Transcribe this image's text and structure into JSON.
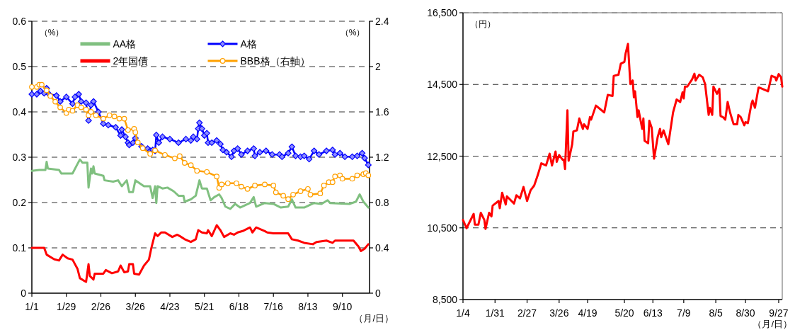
{
  "chart_data": [
    {
      "type": "line",
      "xlabel": "（月/日）",
      "ylabel": "（%）",
      "y2label": "（%）",
      "xlim": [
        "--01-01",
        "--10-02"
      ],
      "xticks": [
        {
          "value": "--01-01",
          "label": "1/1"
        },
        {
          "value": "--01-29",
          "label": "1/29"
        },
        {
          "value": "--02-26",
          "label": "2/26"
        },
        {
          "value": "--03-26",
          "label": "3/26"
        },
        {
          "value": "--04-23",
          "label": "4/23"
        },
        {
          "value": "--05-21",
          "label": "5/21"
        },
        {
          "value": "--06-18",
          "label": "6/18"
        },
        {
          "value": "--07-16",
          "label": "7/16"
        },
        {
          "value": "--08-13",
          "label": "8/13"
        },
        {
          "value": "--09-10",
          "label": "9/10"
        }
      ],
      "ylim": [
        0,
        0.6
      ],
      "yticks": [
        0,
        0.1,
        0.2,
        0.3,
        0.4,
        0.5,
        0.6
      ],
      "y2lim": [
        0,
        2.4
      ],
      "y2ticks": [
        0,
        0.4,
        0.8,
        1.2,
        1.6,
        2,
        2.4
      ],
      "grid": "y",
      "legend": "top",
      "series": [
        {
          "name": "AA格",
          "color": "#80c080",
          "marker": "none",
          "x": [
            "--01-01",
            "--01-07",
            "--01-12",
            "--01-13",
            "--01-14",
            "--01-23",
            "--01-25",
            "--02-03",
            "--02-07",
            "--02-09",
            "--02-11",
            "--02-15",
            "--02-16",
            "--02-18",
            "--02-19",
            "--02-20",
            "--02-21",
            "--02-28",
            "--03-01",
            "--03-08",
            "--03-12",
            "--03-15",
            "--03-19",
            "--03-21",
            "--03-24",
            "--03-26",
            "--04-02",
            "--04-07",
            "--04-09",
            "--04-11",
            "--04-12",
            "--04-13",
            "--04-17",
            "--04-21",
            "--04-26",
            "--04-30",
            "--05-04",
            "--05-05",
            "--05-10",
            "--05-14",
            "--05-17",
            "--05-19",
            "--05-23",
            "--05-26",
            "--05-29",
            "--06-02",
            "--06-04",
            "--06-07",
            "--06-11",
            "--06-15",
            "--06-19",
            "--06-23",
            "--06-27",
            "--06-30",
            "--07-02",
            "--07-09",
            "--07-16",
            "--07-22",
            "--07-28",
            "--07-31",
            "--08-03",
            "--08-10",
            "--08-18",
            "--08-24",
            "--08-29",
            "--08-31",
            "--09-16",
            "--09-21",
            "--09-24",
            "--09-27",
            "--10-01"
          ],
          "values": [
            0.27,
            0.272,
            0.272,
            0.29,
            0.275,
            0.272,
            0.264,
            0.264,
            0.285,
            0.295,
            0.288,
            0.288,
            0.233,
            0.275,
            0.264,
            0.28,
            0.264,
            0.259,
            0.249,
            0.246,
            0.249,
            0.236,
            0.249,
            0.223,
            0.223,
            0.249,
            0.236,
            0.236,
            0.21,
            0.236,
            0.199,
            0.236,
            0.231,
            0.233,
            0.225,
            0.215,
            0.215,
            0.202,
            0.207,
            0.215,
            0.249,
            0.231,
            0.231,
            0.205,
            0.212,
            0.218,
            0.21,
            0.191,
            0.186,
            0.197,
            0.189,
            0.194,
            0.199,
            0.212,
            0.191,
            0.199,
            0.197,
            0.189,
            0.191,
            0.207,
            0.189,
            0.189,
            0.199,
            0.197,
            0.205,
            0.199,
            0.197,
            0.202,
            0.218,
            0.202,
            0.189
          ]
        },
        {
          "name": "A格",
          "color": "#0000ff",
          "marker": "diamond",
          "x": [
            "--01-01",
            "--01-05",
            "--01-08",
            "--01-11",
            "--01-13",
            "--01-15",
            "--01-21",
            "--01-24",
            "--01-29",
            "--02-03",
            "--02-05",
            "--02-08",
            "--02-10",
            "--02-14",
            "--02-16",
            "--02-18",
            "--02-20",
            "--02-24",
            "--02-28",
            "--03-04",
            "--03-10",
            "--03-14",
            "--03-15",
            "--03-18",
            "--03-20",
            "--03-21",
            "--03-24",
            "--03-26",
            "--03-31",
            "--04-05",
            "--04-07",
            "--04-09",
            "--04-11",
            "--04-12",
            "--04-14",
            "--04-17",
            "--04-23",
            "--04-30",
            "--05-06",
            "--05-10",
            "--05-12",
            "--05-15",
            "--05-16",
            "--05-17",
            "--05-19",
            "--05-21",
            "--05-23",
            "--05-24",
            "--05-27",
            "--05-31",
            "--06-03",
            "--06-05",
            "--06-08",
            "--06-12",
            "--06-14",
            "--06-17",
            "--06-20",
            "--06-25",
            "--06-30",
            "--07-01",
            "--07-05",
            "--07-10",
            "--07-15",
            "--07-21",
            "--07-23",
            "--07-28",
            "--07-31",
            "--08-03",
            "--08-07",
            "--08-10",
            "--08-14",
            "--08-18",
            "--08-22",
            "--08-28",
            "--09-02",
            "--09-04",
            "--09-08",
            "--09-12",
            "--09-18",
            "--09-22",
            "--09-26",
            "--09-28",
            "--10-01"
          ],
          "values": [
            0.439,
            0.439,
            0.446,
            0.441,
            0.452,
            0.439,
            0.436,
            0.423,
            0.433,
            0.418,
            0.433,
            0.439,
            0.423,
            0.42,
            0.381,
            0.415,
            0.423,
            0.4,
            0.374,
            0.371,
            0.366,
            0.348,
            0.361,
            0.345,
            0.332,
            0.327,
            0.332,
            0.342,
            0.324,
            0.319,
            0.314,
            0.316,
            0.314,
            0.349,
            0.332,
            0.345,
            0.34,
            0.332,
            0.34,
            0.337,
            0.345,
            0.34,
            0.363,
            0.376,
            0.363,
            0.348,
            0.353,
            0.332,
            0.332,
            0.337,
            0.329,
            0.316,
            0.311,
            0.301,
            0.314,
            0.319,
            0.306,
            0.314,
            0.319,
            0.303,
            0.311,
            0.314,
            0.306,
            0.306,
            0.301,
            0.309,
            0.323,
            0.303,
            0.301,
            0.303,
            0.296,
            0.314,
            0.306,
            0.314,
            0.316,
            0.306,
            0.309,
            0.301,
            0.301,
            0.303,
            0.309,
            0.298,
            0.283
          ]
        },
        {
          "name": "2年国債",
          "color": "#ff0000",
          "marker": "none",
          "x": [
            "--01-01",
            "--01-11",
            "--01-13",
            "--01-19",
            "--01-23",
            "--01-26",
            "--01-30",
            "--02-03",
            "--02-07",
            "--02-09",
            "--02-12",
            "--02-14",
            "--02-16",
            "--02-17",
            "--02-20",
            "--02-21",
            "--02-28",
            "--03-02",
            "--03-07",
            "--03-12",
            "--03-14",
            "--03-17",
            "--03-20",
            "--03-21",
            "--03-24",
            "--03-25",
            "--03-29",
            "--04-02",
            "--04-06",
            "--04-08",
            "--04-11",
            "--04-13",
            "--04-16",
            "--04-19",
            "--04-25",
            "--04-29",
            "--05-01",
            "--05-05",
            "--05-10",
            "--05-14",
            "--05-16",
            "--05-19",
            "--05-23",
            "--05-24",
            "--05-27",
            "--05-31",
            "--06-03",
            "--06-06",
            "--06-11",
            "--06-14",
            "--06-17",
            "--06-21",
            "--06-27",
            "--06-29",
            "--07-02",
            "--07-09",
            "--07-11",
            "--07-16",
            "--07-28",
            "--07-31",
            "--08-05",
            "--08-10",
            "--08-17",
            "--08-20",
            "--08-28",
            "--09-02",
            "--09-04",
            "--09-16",
            "--09-19",
            "--09-23",
            "--09-25",
            "--09-28",
            "--10-01"
          ],
          "values": [
            0.1,
            0.1,
            0.085,
            0.075,
            0.072,
            0.085,
            0.077,
            0.074,
            0.054,
            0.033,
            0.028,
            0.025,
            0.064,
            0.038,
            0.03,
            0.043,
            0.043,
            0.051,
            0.044,
            0.048,
            0.061,
            0.046,
            0.048,
            0.064,
            0.064,
            0.043,
            0.041,
            0.061,
            0.074,
            0.1,
            0.132,
            0.126,
            0.134,
            0.134,
            0.124,
            0.129,
            0.126,
            0.119,
            0.113,
            0.119,
            0.139,
            0.134,
            0.132,
            0.139,
            0.126,
            0.15,
            0.139,
            0.124,
            0.132,
            0.129,
            0.134,
            0.137,
            0.145,
            0.134,
            0.145,
            0.137,
            0.134,
            0.132,
            0.132,
            0.119,
            0.116,
            0.111,
            0.108,
            0.113,
            0.116,
            0.111,
            0.116,
            0.116,
            0.116,
            0.103,
            0.093,
            0.098,
            0.108
          ]
        },
        {
          "name": "BBB格（右軸）",
          "color": "#ffa000",
          "marker": "circle",
          "axis": "y2",
          "x": [
            "--01-01",
            "--01-05",
            "--01-07",
            "--01-09",
            "--01-13",
            "--01-16",
            "--01-20",
            "--01-24",
            "--01-29",
            "--01-31",
            "--02-03",
            "--02-07",
            "--02-10",
            "--02-14",
            "--02-16",
            "--02-18",
            "--02-22",
            "--02-28",
            "--03-05",
            "--03-09",
            "--03-13",
            "--03-17",
            "--03-20",
            "--03-25",
            "--03-26",
            "--03-28",
            "--04-01",
            "--04-07",
            "--04-11",
            "--04-19",
            "--04-27",
            "--05-01",
            "--05-05",
            "--05-10",
            "--05-15",
            "--05-23",
            "--05-31",
            "--06-02",
            "--06-04",
            "--06-09",
            "--06-16",
            "--06-20",
            "--06-25",
            "--07-01",
            "--07-09",
            "--07-16",
            "--07-18",
            "--07-24",
            "--07-28",
            "--08-01",
            "--08-07",
            "--08-13",
            "--08-15",
            "--08-23",
            "--08-26",
            "--08-30",
            "--09-02",
            "--09-04",
            "--09-08",
            "--09-10",
            "--09-18",
            "--09-22",
            "--09-27",
            "--09-29",
            "--10-01"
          ],
          "values": [
            1.82,
            1.82,
            1.84,
            1.84,
            1.79,
            1.74,
            1.69,
            1.64,
            1.59,
            1.62,
            1.61,
            1.66,
            1.64,
            1.62,
            1.57,
            1.6,
            1.57,
            1.54,
            1.57,
            1.56,
            1.54,
            1.54,
            1.44,
            1.45,
            1.42,
            1.33,
            1.28,
            1.23,
            1.26,
            1.22,
            1.19,
            1.21,
            1.15,
            1.13,
            1.08,
            1.07,
            1.03,
            0.93,
            0.96,
            0.97,
            0.97,
            0.94,
            0.92,
            0.95,
            0.96,
            0.95,
            0.89,
            0.86,
            0.83,
            0.87,
            0.9,
            0.92,
            0.87,
            0.88,
            0.95,
            0.98,
            0.98,
            1.03,
            1.04,
            1.01,
            1.01,
            1.04,
            1.05,
            1.06,
            1.04
          ]
        }
      ]
    },
    {
      "type": "line",
      "xlabel": "（月/日）",
      "ylabel": "（円）",
      "color": "#ff0000",
      "grid": "y",
      "xlim": [
        "--01-04",
        "--09-30"
      ],
      "xticks": [
        {
          "value": "--01-04",
          "label": "1/4"
        },
        {
          "value": "--01-31",
          "label": "1/31"
        },
        {
          "value": "--02-27",
          "label": "2/27"
        },
        {
          "value": "--03-26",
          "label": "3/26"
        },
        {
          "value": "--04-19",
          "label": "4/19"
        },
        {
          "value": "--05-20",
          "label": "5/20"
        },
        {
          "value": "--06-13",
          "label": "6/13"
        },
        {
          "value": "--07-09",
          "label": "7/9"
        },
        {
          "value": "--08-05",
          "label": "8/5"
        },
        {
          "value": "--08-30",
          "label": "8/30"
        },
        {
          "value": "--09-27",
          "label": "9/27"
        }
      ],
      "ylim": [
        8500,
        16500
      ],
      "yticks": [
        {
          "value": 8500,
          "label": "8,500"
        },
        {
          "value": 10500,
          "label": "10,500"
        },
        {
          "value": 12500,
          "label": "12,500"
        },
        {
          "value": 14500,
          "label": "14,500"
        },
        {
          "value": 16500,
          "label": "16,500"
        }
      ],
      "x": [
        "--01-04",
        "--01-07",
        "--01-13",
        "--01-14",
        "--01-17",
        "--01-19",
        "--01-22",
        "--01-23",
        "--01-26",
        "--01-28",
        "--01-29",
        "--02-03",
        "--02-04",
        "--02-06",
        "--02-09",
        "--02-10",
        "--02-16",
        "--02-18",
        "--02-21",
        "--02-24",
        "--02-27",
        "--03-02",
        "--03-05",
        "--03-08",
        "--03-11",
        "--03-15",
        "--03-18",
        "--03-20",
        "--03-23",
        "--03-24",
        "--03-26",
        "--03-29",
        "--03-30",
        "--03-31",
        "--04-02",
        "--04-03",
        "--04-06",
        "--04-07",
        "--04-10",
        "--04-12",
        "--04-15",
        "--04-16",
        "--04-19",
        "--04-21",
        "--04-22",
        "--04-26",
        "--05-03",
        "--05-06",
        "--05-10",
        "--05-11",
        "--05-15",
        "--05-17",
        "--05-20",
        "--05-21",
        "--05-23",
        "--05-25",
        "--05-27",
        "--05-28",
        "--05-29",
        "--05-31",
        "--06-01",
        "--06-04",
        "--06-05",
        "--06-06",
        "--06-09",
        "--06-10",
        "--06-12",
        "--06-14",
        "--06-17",
        "--06-19",
        "--06-20",
        "--06-22",
        "--06-26",
        "--06-30",
        "--07-03",
        "--07-06",
        "--07-08",
        "--07-09",
        "--07-10",
        "--07-12",
        "--07-16",
        "--07-18",
        "--07-19",
        "--07-22",
        "--07-25",
        "--07-27",
        "--07-30",
        "--07-31",
        "--08-02",
        "--08-03",
        "--08-06",
        "--08-08",
        "--08-09",
        "--08-11",
        "--08-13",
        "--08-15",
        "--08-17",
        "--08-20",
        "--08-23",
        "--08-24",
        "--08-26",
        "--08-29",
        "--08-30",
        "--09-01",
        "--09-04",
        "--09-05",
        "--09-07",
        "--09-10",
        "--09-11",
        "--09-18",
        "--09-21",
        "--09-24",
        "--09-25",
        "--09-27",
        "--09-29",
        "--09-30"
      ],
      "values": [
        10720,
        10490,
        10890,
        10590,
        10590,
        10920,
        10720,
        10470,
        10920,
        10820,
        11120,
        11250,
        11050,
        11480,
        11150,
        11380,
        11180,
        11410,
        11320,
        11640,
        11250,
        11550,
        11680,
        11970,
        12300,
        12240,
        12570,
        12240,
        12630,
        12340,
        12530,
        12400,
        12400,
        12140,
        13780,
        12370,
        12830,
        13190,
        13220,
        13550,
        13260,
        13390,
        13260,
        13590,
        13520,
        13910,
        13720,
        14210,
        14180,
        14740,
        14770,
        15080,
        15130,
        15360,
        15630,
        14510,
        14610,
        14140,
        14310,
        13590,
        13780,
        13260,
        13550,
        12930,
        12860,
        13490,
        13290,
        12430,
        13030,
        13260,
        13030,
        13220,
        12830,
        13720,
        14080,
        14010,
        14280,
        14110,
        14440,
        14440,
        14640,
        14800,
        14610,
        14770,
        14700,
        14510,
        13650,
        13850,
        13650,
        14440,
        14240,
        14380,
        13620,
        13590,
        13520,
        14010,
        13720,
        13390,
        13390,
        13650,
        13590,
        13360,
        13450,
        13420,
        13950,
        14050,
        13850,
        14410,
        14410,
        14310,
        14740,
        14700,
        14610,
        14790,
        14700,
        14440
      ]
    }
  ]
}
